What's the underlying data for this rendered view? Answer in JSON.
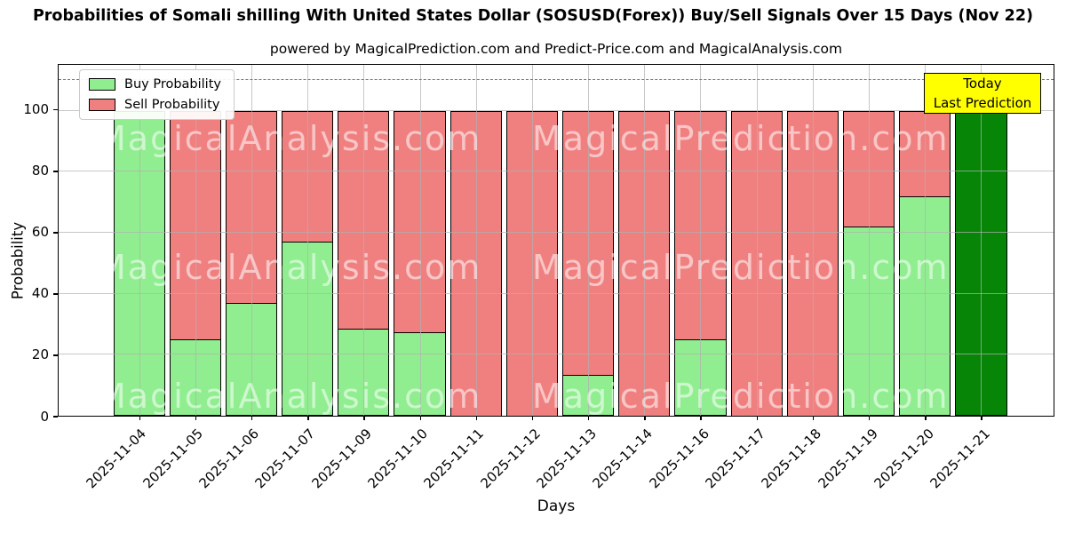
{
  "title": "Probabilities of Somali shilling With United States Dollar (SOSUSD(Forex)) Buy/Sell Signals Over 15 Days (Nov 22)",
  "subtitle": "powered by MagicalPrediction.com and Predict-Price.com and MagicalAnalysis.com",
  "legend": {
    "buy_label": "Buy Probability",
    "sell_label": "Sell Probability"
  },
  "annotation": {
    "line1": "Today",
    "line2": "Last Prediction",
    "bg_color": "#FFFF00"
  },
  "axes": {
    "ylabel": "Probability",
    "xlabel": "Days",
    "yticks": [
      0,
      20,
      40,
      60,
      80,
      100
    ],
    "ymax": 115,
    "dashed_line_y": 110,
    "grid": "on"
  },
  "watermarks": {
    "left_text": "MagicalAnalysis.com",
    "right_text": "MagicalPrediction.com"
  },
  "colors": {
    "buy": "#90EE90",
    "sell": "#F08080",
    "today_bar": "#078507",
    "grid": "#b0b0b0",
    "annotation_bg": "#FFFF00"
  },
  "chart_data": {
    "type": "bar",
    "stacked": true,
    "title": "Probabilities of Somali shilling With United States Dollar (SOSUSD(Forex)) Buy/Sell Signals Over 15 Days (Nov 22)",
    "xlabel": "Days",
    "ylabel": "Probability",
    "ylim": [
      0,
      115
    ],
    "legend_position": "upper left",
    "categories": [
      "2025-11-04",
      "2025-11-05",
      "2025-11-06",
      "2025-11-07",
      "2025-11-09",
      "2025-11-10",
      "2025-11-11",
      "2025-11-12",
      "2025-11-13",
      "2025-11-14",
      "2025-11-16",
      "2025-11-17",
      "2025-11-18",
      "2025-11-19",
      "2025-11-20",
      "2025-11-21"
    ],
    "series": [
      {
        "name": "Buy Probability",
        "color": "#90EE90",
        "values": [
          100,
          25,
          37,
          57,
          28.5,
          27.5,
          0,
          0,
          13.5,
          0,
          25,
          0,
          0,
          62,
          72,
          100
        ]
      },
      {
        "name": "Sell Probability",
        "color": "#F08080",
        "values": [
          0,
          75,
          63,
          43,
          71.5,
          72.5,
          100,
          100,
          86.5,
          100,
          75,
          100,
          100,
          38,
          28,
          0
        ]
      }
    ],
    "today_index": 15,
    "today_bar_color": "#078507"
  }
}
